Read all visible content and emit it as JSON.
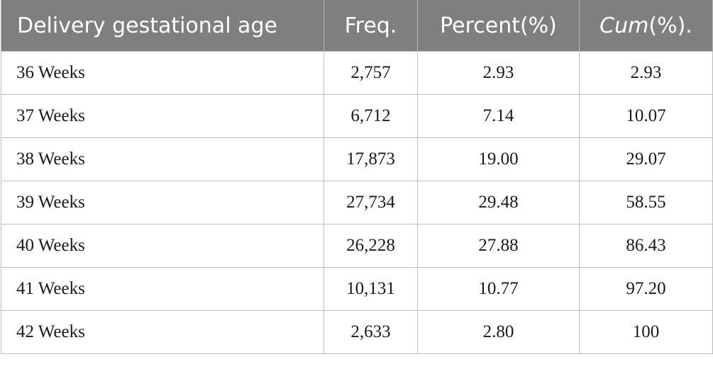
{
  "table": {
    "headers": {
      "col1": "Delivery gestational age",
      "col2": "Freq.",
      "col3": "Percent(%)",
      "col4_italic": "Cum",
      "col4_rest": "(%)."
    },
    "rows": [
      {
        "age": "36 Weeks",
        "freq": "2,757",
        "percent": "2.93",
        "cum": "2.93"
      },
      {
        "age": "37 Weeks",
        "freq": "6,712",
        "percent": "7.14",
        "cum": "10.07"
      },
      {
        "age": "38 Weeks",
        "freq": "17,873",
        "percent": "19.00",
        "cum": "29.07"
      },
      {
        "age": "39 Weeks",
        "freq": "27,734",
        "percent": "29.48",
        "cum": "58.55"
      },
      {
        "age": "40 Weeks",
        "freq": "26,228",
        "percent": "27.88",
        "cum": "86.43"
      },
      {
        "age": "41 Weeks",
        "freq": "10,131",
        "percent": "10.77",
        "cum": "97.20"
      },
      {
        "age": "42 Weeks",
        "freq": "2,633",
        "percent": "2.80",
        "cum": "100"
      }
    ]
  },
  "colors": {
    "header_bg": "#7f7f7f",
    "header_text": "#ffffff",
    "grid": "#bdbdbd"
  }
}
